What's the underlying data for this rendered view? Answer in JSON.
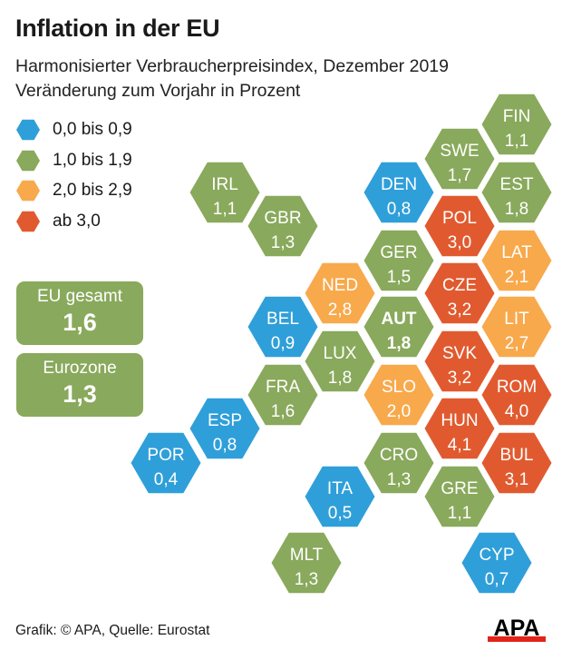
{
  "title": "Inflation in der EU",
  "subtitle_1": "Harmonisierter Verbraucherpreisindex, Dezember 2019",
  "subtitle_2": "Veränderung zum Vorjahr in Prozent",
  "colors": {
    "blue": "#2f9fd9",
    "green": "#89a95c",
    "orange": "#f8a94c",
    "red": "#e15a2f"
  },
  "legend": [
    {
      "label": "0,0 bis 0,9",
      "color": "blue"
    },
    {
      "label": "1,0 bis 1,9",
      "color": "green"
    },
    {
      "label": "2,0 bis 2,9",
      "color": "orange"
    },
    {
      "label": "ab 3,0",
      "color": "red"
    }
  ],
  "summary": [
    {
      "label": "EU gesamt",
      "value": "1,6",
      "color": "green"
    },
    {
      "label": "Eurozone",
      "value": "1,3",
      "color": "green"
    }
  ],
  "chart_data": {
    "type": "hex-map",
    "unit": "Prozent",
    "countries": [
      {
        "code": "FIN",
        "value": 1.1,
        "label": "1,1"
      },
      {
        "code": "SWE",
        "value": 1.7,
        "label": "1,7"
      },
      {
        "code": "EST",
        "value": 1.8,
        "label": "1,8"
      },
      {
        "code": "DEN",
        "value": 0.8,
        "label": "0,8"
      },
      {
        "code": "IRL",
        "value": 1.1,
        "label": "1,1"
      },
      {
        "code": "POL",
        "value": 3.0,
        "label": "3,0"
      },
      {
        "code": "GBR",
        "value": 1.3,
        "label": "1,3"
      },
      {
        "code": "GER",
        "value": 1.5,
        "label": "1,5"
      },
      {
        "code": "LAT",
        "value": 2.1,
        "label": "2,1"
      },
      {
        "code": "NED",
        "value": 2.8,
        "label": "2,8"
      },
      {
        "code": "CZE",
        "value": 3.2,
        "label": "3,2"
      },
      {
        "code": "BEL",
        "value": 0.9,
        "label": "0,9"
      },
      {
        "code": "AUT",
        "value": 1.8,
        "label": "1,8",
        "highlight": true
      },
      {
        "code": "LIT",
        "value": 2.7,
        "label": "2,7"
      },
      {
        "code": "LUX",
        "value": 1.8,
        "label": "1,8"
      },
      {
        "code": "SVK",
        "value": 3.2,
        "label": "3,2"
      },
      {
        "code": "FRA",
        "value": 1.6,
        "label": "1,6"
      },
      {
        "code": "SLO",
        "value": 2.0,
        "label": "2,0"
      },
      {
        "code": "ROM",
        "value": 4.0,
        "label": "4,0"
      },
      {
        "code": "ESP",
        "value": 0.8,
        "label": "0,8"
      },
      {
        "code": "HUN",
        "value": 4.1,
        "label": "4,1"
      },
      {
        "code": "POR",
        "value": 0.4,
        "label": "0,4"
      },
      {
        "code": "CRO",
        "value": 1.3,
        "label": "1,3"
      },
      {
        "code": "BUL",
        "value": 3.1,
        "label": "3,1"
      },
      {
        "code": "ITA",
        "value": 0.5,
        "label": "0,5"
      },
      {
        "code": "GRE",
        "value": 1.1,
        "label": "1,1"
      },
      {
        "code": "MLT",
        "value": 1.3,
        "label": "1,3"
      },
      {
        "code": "CYP",
        "value": 0.7,
        "label": "0,7"
      }
    ]
  },
  "footer": "Grafik: © APA, Quelle: Eurostat",
  "logo_text": "APA"
}
